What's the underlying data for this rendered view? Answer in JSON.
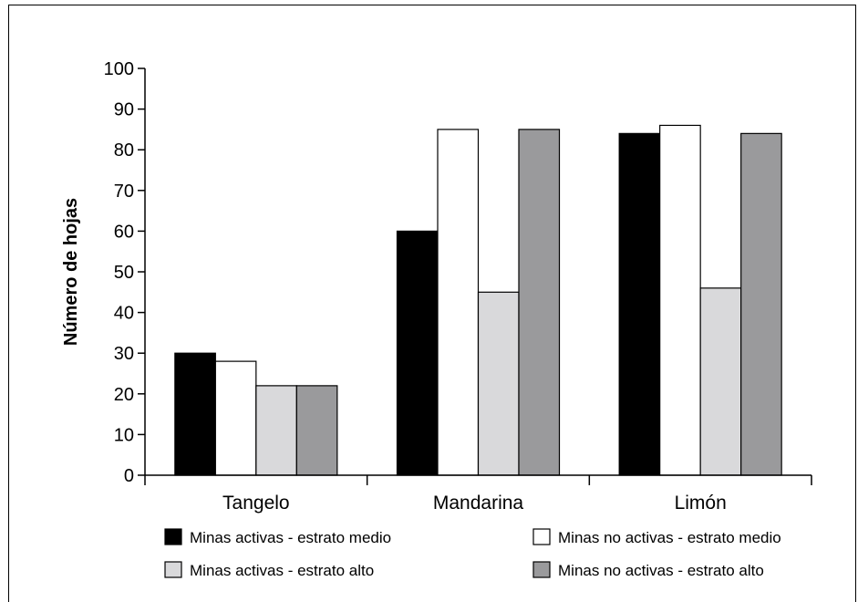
{
  "chart_data": {
    "type": "bar",
    "categories": [
      "Tangelo",
      "Mandarina",
      "Limón"
    ],
    "series": [
      {
        "name": "Minas activas - estrato medio",
        "values": [
          30,
          60,
          84
        ],
        "color": "#000000"
      },
      {
        "name": "Minas no activas - estrato medio",
        "values": [
          28,
          85,
          86
        ],
        "color": "#ffffff"
      },
      {
        "name": "Minas activas - estrato alto",
        "values": [
          22,
          45,
          46
        ],
        "color": "#d9d9db"
      },
      {
        "name": "Minas no activas - estrato alto",
        "values": [
          22,
          85,
          84
        ],
        "color": "#9a9a9c"
      }
    ],
    "ylabel": "Número de hojas",
    "xlabel": "",
    "ylim": [
      0,
      100
    ],
    "yticks": [
      0,
      10,
      20,
      30,
      40,
      50,
      60,
      70,
      80,
      90,
      100
    ],
    "legend_position": "bottom",
    "grid": false
  }
}
